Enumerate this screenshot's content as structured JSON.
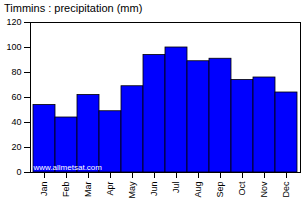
{
  "chart_data": {
    "type": "bar",
    "title": "Timmins : precipitation (mm)",
    "categories": [
      "Jan",
      "Feb",
      "Mar",
      "Apr",
      "May",
      "Jun",
      "Jul",
      "Aug",
      "Sep",
      "Oct",
      "Nov",
      "Dec"
    ],
    "values": [
      54,
      44,
      62,
      49,
      69,
      94,
      100,
      89,
      91,
      74,
      76,
      64
    ],
    "color": "#0000ff",
    "ylim": [
      0,
      120
    ],
    "yticks": [
      0,
      20,
      40,
      60,
      80,
      100,
      120
    ],
    "grid": false,
    "annotations": [
      "www.allmetsat.com"
    ]
  }
}
